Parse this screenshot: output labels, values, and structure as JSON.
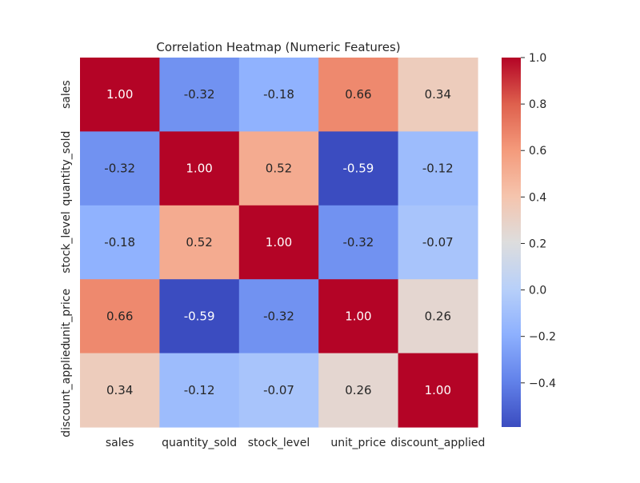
{
  "chart_data": {
    "type": "heatmap",
    "title": "Correlation Heatmap (Numeric Features)",
    "xlabel": "",
    "ylabel": "",
    "x_labels": [
      "sales",
      "quantity_sold",
      "stock_level",
      "unit_price",
      "discount_applied"
    ],
    "y_labels": [
      "sales",
      "quantity_sold",
      "stock_level",
      "unit_price",
      "discount_applied"
    ],
    "values": [
      [
        1.0,
        -0.32,
        -0.18,
        0.66,
        0.34
      ],
      [
        -0.32,
        1.0,
        0.52,
        -0.59,
        -0.12
      ],
      [
        -0.18,
        0.52,
        1.0,
        -0.32,
        -0.07
      ],
      [
        0.66,
        -0.59,
        -0.32,
        1.0,
        0.26
      ],
      [
        0.34,
        -0.12,
        -0.07,
        0.26,
        1.0
      ]
    ],
    "value_format": "0.00",
    "colormap": "coolwarm",
    "color_range": [
      -0.59,
      1.0
    ],
    "colorbar": {
      "ticks": [
        1.0,
        0.8,
        0.6,
        0.4,
        0.2,
        0.0,
        -0.2,
        -0.4
      ],
      "tick_labels": [
        "1.0",
        "0.8",
        "0.6",
        "0.4",
        "0.2",
        "0.0",
        "−0.2",
        "−0.4"
      ]
    },
    "legend_position": "right"
  }
}
